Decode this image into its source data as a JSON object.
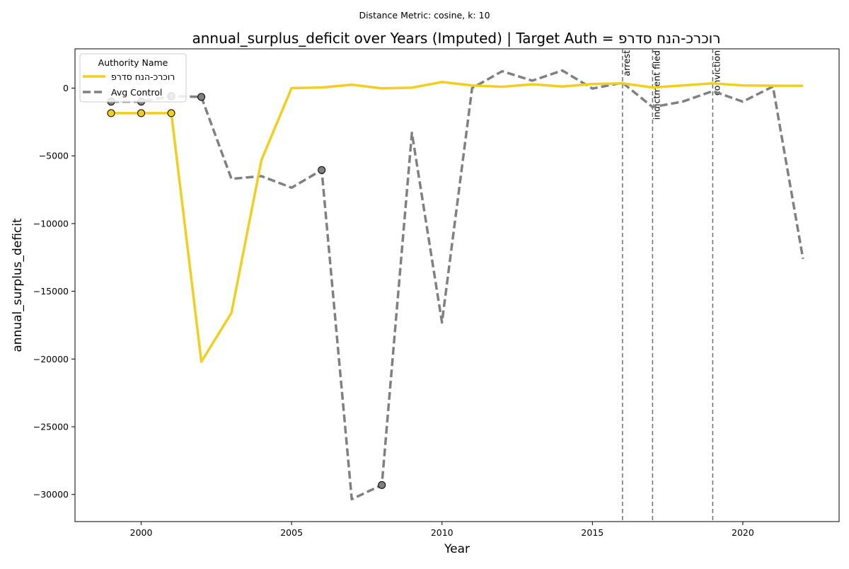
{
  "suptitle": "Distance Metric: cosine, k: 10",
  "chart_data": {
    "type": "line",
    "title": "annual_surplus_deficit over Years (Imputed) | Target Auth = רוכרכ-הנח סדרפ",
    "xlabel": "Year",
    "ylabel": "annual_surplus_deficit",
    "xlim": [
      1997.8,
      2023.2
    ],
    "ylim": [
      -32000,
      2900
    ],
    "x_ticks": [
      2000,
      2005,
      2010,
      2015,
      2020
    ],
    "y_ticks": [
      0,
      -5000,
      -10000,
      -15000,
      -20000,
      -25000,
      -30000
    ],
    "y_tick_labels": [
      "0",
      "−5000",
      "−10000",
      "−15000",
      "−20000",
      "−25000",
      "−30000"
    ],
    "grid": false,
    "legend": {
      "title": "Authority Name",
      "placement": "top-left"
    },
    "colors": {
      "target": "#f2ce1f",
      "control": "#808080",
      "event_line": "#6e6e6e"
    },
    "series": [
      {
        "name": "רוכרכ-הנח סדרפ",
        "style": "solid",
        "x": [
          1999,
          2000,
          2001,
          2002,
          2003,
          2004,
          2005,
          2006,
          2007,
          2008,
          2009,
          2010,
          2011,
          2012,
          2013,
          2014,
          2015,
          2016,
          2017,
          2018,
          2019,
          2020,
          2021,
          2022
        ],
        "y": [
          -1850,
          -1850,
          -1850,
          -20200,
          -16600,
          -5300,
          0,
          50,
          250,
          -20,
          30,
          450,
          200,
          100,
          280,
          120,
          300,
          350,
          50,
          200,
          350,
          200,
          180,
          170
        ],
        "imputed_x": [
          1999,
          2000,
          2001
        ]
      },
      {
        "name": "Avg Control",
        "style": "dashed",
        "x": [
          1999,
          2000,
          2001,
          2002,
          2003,
          2004,
          2005,
          2006,
          2007,
          2008,
          2009,
          2010,
          2011,
          2012,
          2013,
          2014,
          2015,
          2016,
          2017,
          2018,
          2019,
          2020,
          2021,
          2022
        ],
        "y": [
          -1000,
          -1000,
          -600,
          -650,
          -6700,
          -6500,
          -7350,
          -6050,
          -30350,
          -29300,
          -3300,
          -17300,
          0,
          1250,
          550,
          1300,
          -30,
          400,
          -1400,
          -1000,
          -220,
          -1000,
          120,
          -12600
        ],
        "imputed_x": [
          1999,
          2000,
          2001,
          2002,
          2006,
          2008
        ]
      }
    ],
    "events": [
      {
        "x": 2016,
        "label": "arrest"
      },
      {
        "x": 2017,
        "label": "indictment filed"
      },
      {
        "x": 2019,
        "label": "conviction"
      }
    ]
  }
}
